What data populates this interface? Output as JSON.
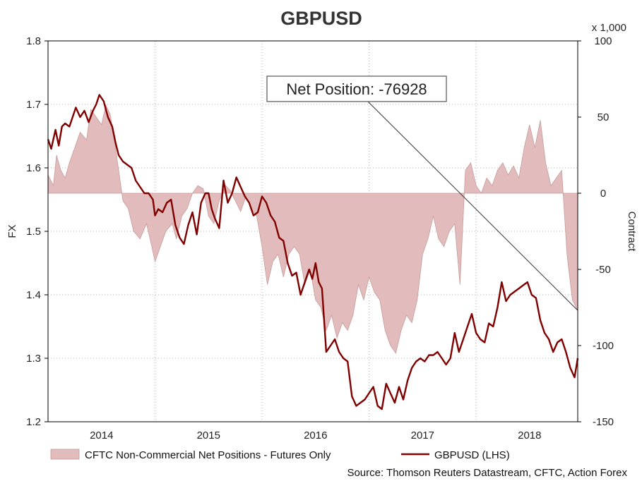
{
  "chart_data": {
    "type": "line",
    "title": "GBPUSD",
    "source": "Source: Thomson Reuters Datastream, CFTC, Action Forex",
    "left_axis": {
      "label": "FX",
      "ylim": [
        1.2,
        1.8
      ],
      "ticks": [
        "1.2",
        "1.3",
        "1.4",
        "1.5",
        "1.6",
        "1.7",
        "1.8"
      ]
    },
    "right_axis": {
      "label": "Contract",
      "multiplier_label": "x 1,000",
      "ylim": [
        -150,
        100
      ],
      "ticks": [
        "-150",
        "-100",
        "-50",
        "0",
        "50",
        "100"
      ]
    },
    "x_axis": {
      "xlim": [
        2013.5,
        2018.45
      ],
      "ticks": [
        "2014",
        "2015",
        "2016",
        "2017",
        "2018"
      ]
    },
    "grid": true,
    "legend_position": "bottom",
    "colors": {
      "line": "#800000",
      "area_fill": "#e2bcbc",
      "area_edge": "#c99a9a"
    },
    "annotation": {
      "text": "Net Position: -76928",
      "points_to_x": 2018.45,
      "points_to_value": -76.928
    },
    "series": [
      {
        "name": "CFTC Non-Commercial Net Positions - Futures Only",
        "axis": "right",
        "style": "area",
        "x": [
          2013.5,
          2013.55,
          2013.58,
          2013.62,
          2013.66,
          2013.7,
          2013.75,
          2013.8,
          2013.86,
          2013.9,
          2013.95,
          2014.0,
          2014.04,
          2014.08,
          2014.12,
          2014.16,
          2014.2,
          2014.25,
          2014.3,
          2014.36,
          2014.42,
          2014.47,
          2014.5,
          2014.55,
          2014.6,
          2014.66,
          2014.7,
          2014.75,
          2014.8,
          2014.85,
          2014.9,
          2014.95,
          2015.0,
          2015.05,
          2015.1,
          2015.16,
          2015.2,
          2015.25,
          2015.3,
          2015.35,
          2015.4,
          2015.45,
          2015.5,
          2015.55,
          2015.6,
          2015.65,
          2015.7,
          2015.75,
          2015.8,
          2015.85,
          2015.9,
          2015.95,
          2016.0,
          2016.05,
          2016.1,
          2016.15,
          2016.2,
          2016.25,
          2016.3,
          2016.35,
          2016.4,
          2016.45,
          2016.5,
          2016.55,
          2016.6,
          2016.65,
          2016.7,
          2016.75,
          2016.8,
          2016.85,
          2016.9,
          2016.95,
          2017.0,
          2017.05,
          2017.1,
          2017.15,
          2017.2,
          2017.25,
          2017.3,
          2017.35,
          2017.4,
          2017.45,
          2017.5,
          2017.55,
          2017.6,
          2017.65,
          2017.7,
          2017.75,
          2017.8,
          2017.85,
          2017.9,
          2017.95,
          2018.0,
          2018.05,
          2018.1,
          2018.15,
          2018.2,
          2018.25,
          2018.3,
          2018.35,
          2018.4,
          2018.45
        ],
        "values": [
          12,
          5,
          25,
          15,
          10,
          20,
          30,
          40,
          35,
          55,
          50,
          45,
          58,
          52,
          35,
          15,
          -5,
          -10,
          -25,
          -30,
          -20,
          -35,
          -45,
          -35,
          -25,
          -20,
          -30,
          -15,
          -10,
          0,
          5,
          3,
          -15,
          -20,
          -5,
          5,
          2,
          -5,
          -12,
          -2,
          -10,
          -15,
          -35,
          -60,
          -45,
          -40,
          -55,
          -40,
          -35,
          -40,
          -60,
          -50,
          -70,
          -75,
          -90,
          -80,
          -95,
          -85,
          -90,
          -80,
          -60,
          -70,
          -55,
          -65,
          -70,
          -90,
          -100,
          -105,
          -90,
          -80,
          -85,
          -70,
          -40,
          -30,
          -15,
          -30,
          -35,
          -25,
          -20,
          -60,
          15,
          20,
          5,
          0,
          10,
          5,
          15,
          20,
          12,
          18,
          10,
          30,
          45,
          30,
          48,
          20,
          5,
          10,
          15,
          -40,
          -70,
          -77
        ]
      },
      {
        "name": "GBPUSD (LHS)",
        "axis": "left",
        "style": "line",
        "x": [
          2013.5,
          2013.53,
          2013.57,
          2013.6,
          2013.63,
          2013.66,
          2013.7,
          2013.73,
          2013.76,
          2013.8,
          2013.84,
          2013.88,
          2013.92,
          2013.95,
          2013.98,
          2014.02,
          2014.06,
          2014.1,
          2014.13,
          2014.16,
          2014.2,
          2014.24,
          2014.28,
          2014.32,
          2014.36,
          2014.4,
          2014.44,
          2014.48,
          2014.5,
          2014.53,
          2014.57,
          2014.61,
          2014.65,
          2014.69,
          2014.73,
          2014.77,
          2014.81,
          2014.85,
          2014.89,
          2014.93,
          2014.97,
          2015.0,
          2015.03,
          2015.06,
          2015.1,
          2015.14,
          2015.18,
          2015.22,
          2015.26,
          2015.3,
          2015.34,
          2015.38,
          2015.42,
          2015.46,
          2015.5,
          2015.54,
          2015.58,
          2015.62,
          2015.66,
          2015.7,
          2015.74,
          2015.78,
          2015.82,
          2015.86,
          2015.9,
          2015.94,
          2015.97,
          2016.0,
          2016.03,
          2016.06,
          2016.1,
          2016.14,
          2016.18,
          2016.22,
          2016.26,
          2016.3,
          2016.34,
          2016.38,
          2016.42,
          2016.46,
          2016.5,
          2016.54,
          2016.58,
          2016.62,
          2016.66,
          2016.7,
          2016.74,
          2016.78,
          2016.82,
          2016.86,
          2016.9,
          2016.94,
          2016.98,
          2017.02,
          2017.06,
          2017.1,
          2017.14,
          2017.18,
          2017.22,
          2017.26,
          2017.3,
          2017.34,
          2017.38,
          2017.42,
          2017.46,
          2017.5,
          2017.54,
          2017.58,
          2017.62,
          2017.66,
          2017.7,
          2017.74,
          2017.78,
          2017.82,
          2017.86,
          2017.9,
          2017.94,
          2017.98,
          2018.02,
          2018.06,
          2018.1,
          2018.14,
          2018.18,
          2018.22,
          2018.26,
          2018.3,
          2018.34,
          2018.38,
          2018.42,
          2018.45
        ],
        "values": [
          1.645,
          1.63,
          1.66,
          1.635,
          1.665,
          1.67,
          1.665,
          1.68,
          1.695,
          1.68,
          1.69,
          1.672,
          1.69,
          1.7,
          1.715,
          1.705,
          1.68,
          1.665,
          1.64,
          1.62,
          1.61,
          1.605,
          1.6,
          1.58,
          1.57,
          1.56,
          1.56,
          1.55,
          1.525,
          1.535,
          1.53,
          1.545,
          1.55,
          1.51,
          1.49,
          1.48,
          1.51,
          1.53,
          1.495,
          1.545,
          1.56,
          1.56,
          1.535,
          1.52,
          1.505,
          1.58,
          1.545,
          1.56,
          1.585,
          1.57,
          1.555,
          1.545,
          1.525,
          1.53,
          1.555,
          1.545,
          1.525,
          1.515,
          1.49,
          1.485,
          1.45,
          1.43,
          1.435,
          1.4,
          1.42,
          1.44,
          1.425,
          1.45,
          1.42,
          1.41,
          1.31,
          1.32,
          1.33,
          1.31,
          1.3,
          1.295,
          1.24,
          1.225,
          1.23,
          1.235,
          1.245,
          1.255,
          1.225,
          1.22,
          1.26,
          1.245,
          1.23,
          1.255,
          1.235,
          1.265,
          1.285,
          1.295,
          1.3,
          1.295,
          1.305,
          1.305,
          1.31,
          1.3,
          1.29,
          1.3,
          1.34,
          1.31,
          1.33,
          1.35,
          1.37,
          1.34,
          1.33,
          1.325,
          1.355,
          1.35,
          1.38,
          1.42,
          1.39,
          1.4,
          1.405,
          1.41,
          1.415,
          1.42,
          1.4,
          1.395,
          1.36,
          1.34,
          1.33,
          1.31,
          1.325,
          1.33,
          1.31,
          1.285,
          1.27,
          1.3
        ]
      }
    ]
  }
}
